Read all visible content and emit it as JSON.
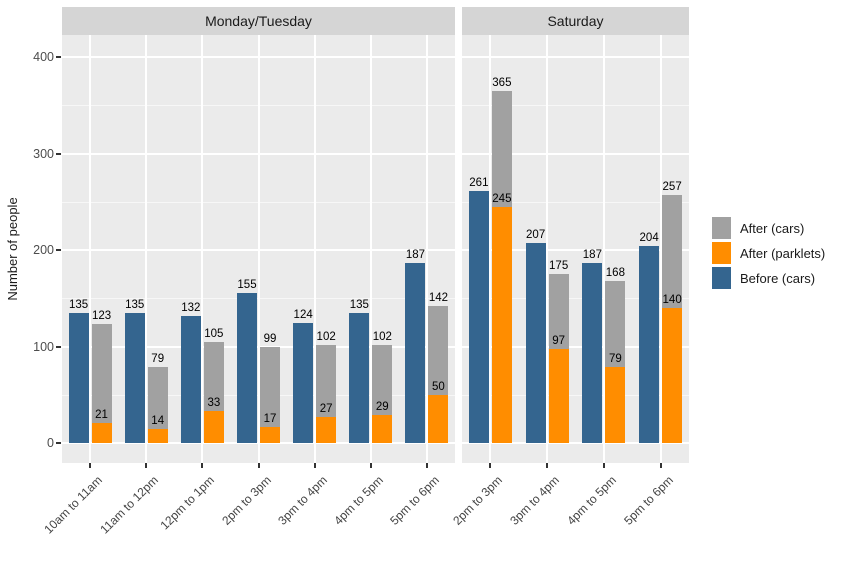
{
  "chart_data": {
    "type": "bar",
    "title": "",
    "xlabel": "",
    "ylabel": "Number of people",
    "y_axis": {
      "ticks": [
        0,
        100,
        200,
        300,
        400
      ],
      "minor_ticks": [
        50,
        150,
        250,
        350
      ],
      "ylim": [
        0,
        400
      ],
      "grid": "on"
    },
    "legend_position": "right",
    "legend": [
      {
        "name": "After (cars)",
        "color": "#a1a1a1"
      },
      {
        "name": "After (parklets)",
        "color": "#ff8d00"
      },
      {
        "name": "Before (cars)",
        "color": "#34658f"
      }
    ],
    "facets": [
      {
        "label": "Monday/Tuesday",
        "categories": [
          "10am to 11am",
          "11am to 12pm",
          "12pm to 1pm",
          "2pm to 3pm",
          "3pm to 4pm",
          "4pm to 5pm",
          "5pm to 6pm"
        ],
        "series": [
          {
            "name": "Before (cars)",
            "values": [
              135,
              135,
              132,
              155,
              124,
              135,
              187
            ]
          },
          {
            "name": "After (cars)",
            "values": [
              123,
              79,
              105,
              99,
              102,
              102,
              142
            ]
          },
          {
            "name": "After (parklets)",
            "values": [
              21,
              14,
              33,
              17,
              27,
              29,
              50
            ]
          }
        ]
      },
      {
        "label": "Saturday",
        "categories": [
          "2pm to 3pm",
          "3pm to 4pm",
          "4pm to 5pm",
          "5pm to 6pm"
        ],
        "series": [
          {
            "name": "Before (cars)",
            "values": [
              261,
              207,
              187,
              204
            ]
          },
          {
            "name": "After (cars)",
            "values": [
              365,
              175,
              168,
              257
            ]
          },
          {
            "name": "After (parklets)",
            "values": [
              245,
              97,
              79,
              140
            ]
          }
        ]
      }
    ],
    "colors": {
      "panel_background": "#ebebeb",
      "strip_background": "#d5d5d5",
      "gridline": "#ffffff",
      "axis_text": "#4d4d4d",
      "bar_label_text": "#000000"
    }
  }
}
